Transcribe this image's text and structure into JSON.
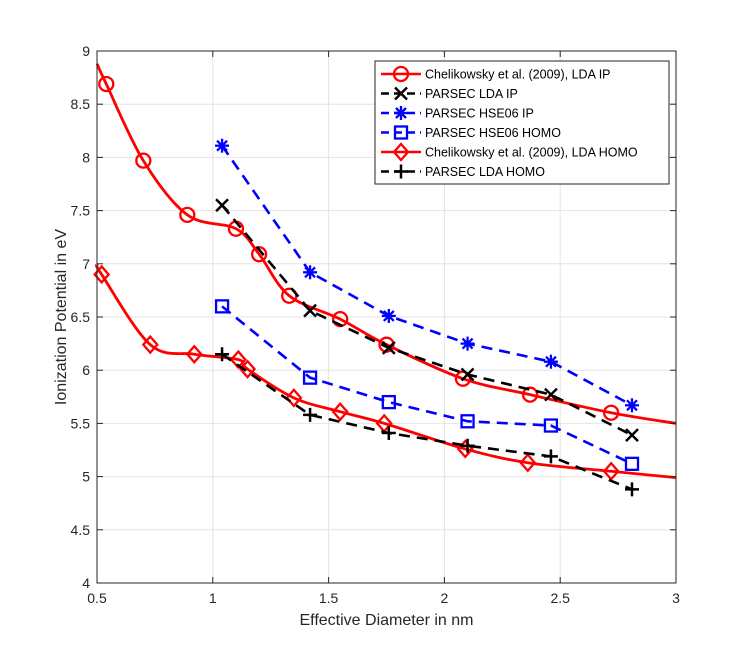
{
  "chart_data": {
    "type": "line",
    "title": "",
    "xlabel": "Effective Diameter in nm",
    "ylabel": "Ionization Potential in eV",
    "xlim": [
      0.5,
      3
    ],
    "ylim": [
      4,
      9
    ],
    "xticks": [
      0.5,
      1,
      1.5,
      2,
      2.5,
      3
    ],
    "xtick_labels": [
      "0.5",
      "1",
      "1.5",
      "2",
      "2.5",
      "3"
    ],
    "yticks": [
      4,
      4.5,
      5,
      5.5,
      6,
      6.5,
      7,
      7.5,
      8,
      8.5,
      9
    ],
    "ytick_labels": [
      "4",
      "4.5",
      "5",
      "5.5",
      "6",
      "6.5",
      "7",
      "7.5",
      "8",
      "8.5",
      "9"
    ],
    "grid": true,
    "legend_position": "top-right",
    "series": [
      {
        "name": "Chelikowsky et al. (2009), LDA IP",
        "color": "#ff0000",
        "line": "solid",
        "marker": "circle",
        "x": [
          0.54,
          0.7,
          0.89,
          1.1,
          1.2,
          1.33,
          1.55,
          1.75,
          2.08,
          2.37,
          2.72
        ],
        "y": [
          8.69,
          7.97,
          7.46,
          7.33,
          7.09,
          6.7,
          6.48,
          6.24,
          5.92,
          5.77,
          5.6
        ],
        "curve": {
          "x": [
            0.5,
            0.54,
            0.7,
            0.89,
            1.1,
            1.2,
            1.33,
            1.55,
            1.75,
            2.08,
            2.37,
            2.72,
            3.0
          ],
          "y": [
            8.88,
            8.69,
            7.97,
            7.46,
            7.33,
            7.09,
            6.7,
            6.48,
            6.24,
            5.92,
            5.77,
            5.6,
            5.5
          ]
        }
      },
      {
        "name": "PARSEC LDA IP",
        "color": "#000000",
        "line": "dashed",
        "marker": "x",
        "x": [
          1.04,
          1.42,
          1.76,
          2.1,
          2.46,
          2.81
        ],
        "y": [
          7.55,
          6.56,
          6.21,
          5.96,
          5.77,
          5.39
        ]
      },
      {
        "name": "PARSEC HSE06 IP",
        "color": "#0000ff",
        "line": "dashed",
        "marker": "asterisk",
        "x": [
          1.04,
          1.42,
          1.76,
          2.1,
          2.46,
          2.81
        ],
        "y": [
          8.11,
          6.92,
          6.51,
          6.25,
          6.08,
          5.67
        ]
      },
      {
        "name": "PARSEC HSE06 HOMO",
        "color": "#0000ff",
        "line": "dashed",
        "marker": "square",
        "x": [
          1.04,
          1.42,
          1.76,
          2.1,
          2.46,
          2.81
        ],
        "y": [
          6.6,
          5.93,
          5.7,
          5.52,
          5.48,
          5.12
        ]
      },
      {
        "name": "Chelikowsky et al. (2009), LDA HOMO",
        "color": "#ff0000",
        "line": "solid",
        "marker": "diamond",
        "x": [
          0.52,
          0.73,
          0.92,
          1.11,
          1.15,
          1.35,
          1.55,
          1.74,
          2.09,
          2.36,
          2.72
        ],
        "y": [
          6.9,
          6.24,
          6.15,
          6.1,
          6.01,
          5.74,
          5.61,
          5.5,
          5.26,
          5.13,
          5.05
        ],
        "curve": {
          "x": [
            0.5,
            0.52,
            0.73,
            0.92,
            1.11,
            1.15,
            1.35,
            1.55,
            1.74,
            2.09,
            2.36,
            2.72,
            3.0
          ],
          "y": [
            6.99,
            6.9,
            6.24,
            6.15,
            6.1,
            6.01,
            5.74,
            5.61,
            5.5,
            5.26,
            5.13,
            5.05,
            4.99
          ]
        }
      },
      {
        "name": "PARSEC LDA HOMO",
        "color": "#000000",
        "line": "dashed",
        "marker": "plus",
        "x": [
          1.04,
          1.42,
          1.76,
          2.1,
          2.46,
          2.81
        ],
        "y": [
          6.15,
          5.58,
          5.41,
          5.29,
          5.19,
          4.88
        ]
      }
    ]
  }
}
